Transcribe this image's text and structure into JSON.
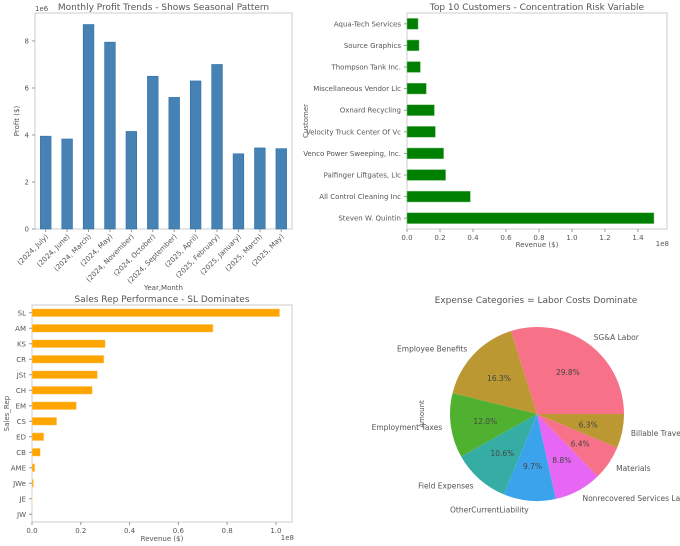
{
  "chart_data": [
    {
      "type": "bar",
      "title": "Monthly Profit Trends - Shows Seasonal Pattern",
      "xlabel": "Year,Month",
      "ylabel": "Profit ($)",
      "y_offset_label": "1e6",
      "categories": [
        "(2024, July)",
        "(2024, June)",
        "(2024, March)",
        "(2024, May)",
        "(2024, November)",
        "(2024, October)",
        "(2024, September)",
        "(2025, April)",
        "(2025, February)",
        "(2025, January)",
        "(2025, March)",
        "(2025, May)"
      ],
      "values": [
        3950000,
        3830000,
        8700000,
        7950000,
        4150000,
        6500000,
        5600000,
        6300000,
        7000000,
        3200000,
        3450000,
        3420000
      ],
      "ylim": [
        0,
        9190000
      ],
      "yticks": [
        0,
        2,
        4,
        6,
        8
      ],
      "color": "#4682b4",
      "grid": false
    },
    {
      "type": "bar",
      "orientation": "horizontal",
      "title": "Top 10 Customers - Concentration Risk Variable",
      "xlabel": "Revenue ($)",
      "ylabel": "Customer",
      "x_offset_label": "1e8",
      "categories": [
        "Steven W. Quintin",
        "All Control Cleaning Inc",
        "Palfinger Liftgates, Llc",
        "Venco Power Sweeping, Inc.",
        "Velocity Truck Center Of Vc",
        "Oxnard Recycling",
        "Miscellaneous Vendor Llc",
        "Thompson Tank Inc.",
        "Source Graphics",
        "Aqua-Tech Services"
      ],
      "values": [
        149700000,
        38400000,
        23400000,
        22200000,
        17200000,
        16600000,
        11700000,
        8100000,
        7300000,
        6700000
      ],
      "xlim": [
        0,
        157600000
      ],
      "xticks": [
        "0.0",
        "0.2",
        "0.4",
        "0.6",
        "0.8",
        "1.0",
        "1.2",
        "1.4"
      ],
      "color": "#008000",
      "grid": false
    },
    {
      "type": "bar",
      "orientation": "horizontal",
      "title": "Sales Rep Performance - SL Dominates",
      "xlabel": "Revenue ($)",
      "ylabel": "Sales_Rep",
      "x_offset_label": "1e8",
      "categories": [
        "JW",
        "JE",
        "JWe",
        "AME",
        "CB",
        "ED",
        "CS",
        "EM",
        "CH",
        "JSt",
        "CR",
        "KS",
        "AM",
        "SL"
      ],
      "values": [
        0,
        100000,
        600000,
        1100000,
        3400000,
        4800000,
        10100000,
        18200000,
        24700000,
        26800000,
        29500000,
        30000000,
        74200000,
        101500000
      ],
      "xlim": [
        0,
        106600000
      ],
      "xticks": [
        "0.0",
        "0.2",
        "0.4",
        "0.6",
        "0.8",
        "1.0"
      ],
      "color": "#ffa500",
      "grid": false
    },
    {
      "type": "pie",
      "title": "Expense Categories = Labor Costs Dominate",
      "ylabel": "Amount",
      "labels": [
        "SG&A Labor",
        "Employee Benefits",
        "Employment Taxes",
        "Field Expenses",
        "OtherCurrentLiability",
        "Nonrecovered Services Labor",
        "Materials",
        "Billable Travel"
      ],
      "values": [
        29.8,
        16.3,
        12.0,
        10.6,
        9.7,
        8.8,
        6.4,
        6.3
      ],
      "pct_labels": [
        "29.8%",
        "16.3%",
        "12.0%",
        "10.6%",
        "9.7%",
        "8.8%",
        "6.4%",
        "6.3%"
      ],
      "colors": [
        "#f77189",
        "#bb9832",
        "#50b131",
        "#36ada4",
        "#3ba3ec",
        "#e866f4",
        "#f77189",
        "#bb9832"
      ]
    }
  ]
}
